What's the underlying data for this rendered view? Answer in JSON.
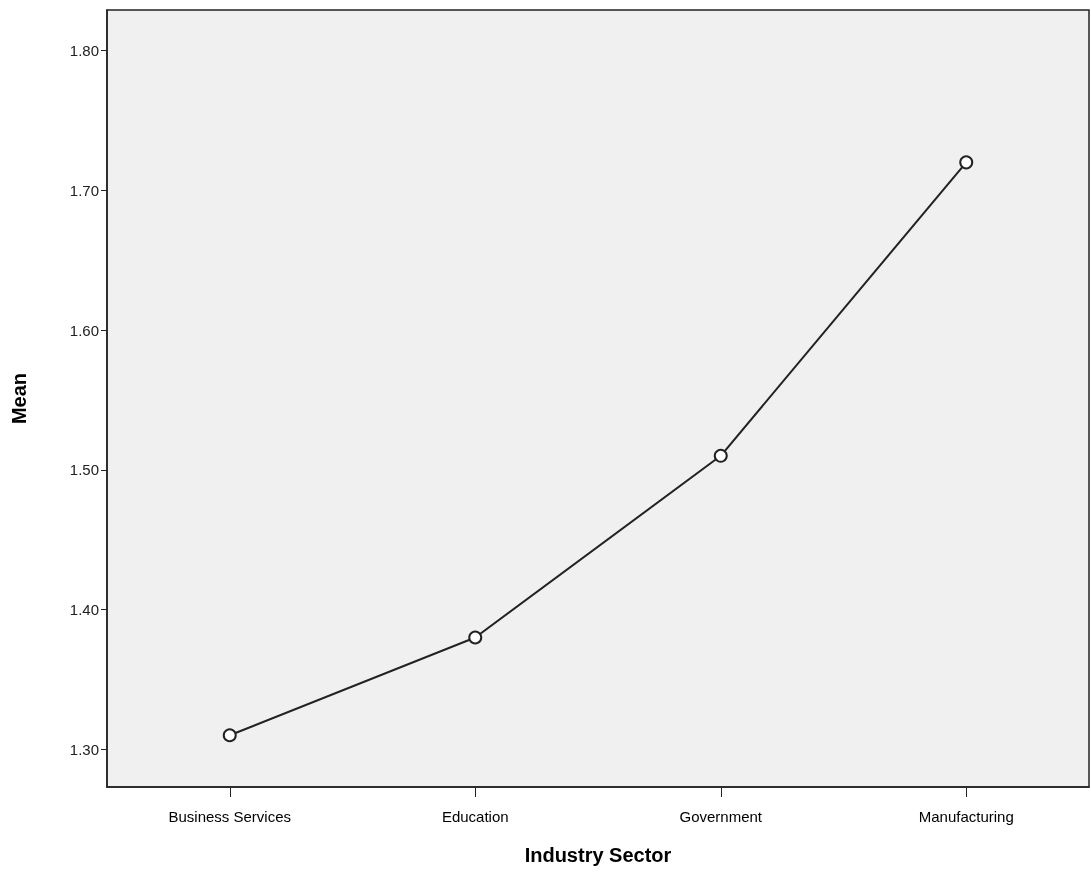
{
  "chart_data": {
    "type": "line",
    "xlabel": "Industry Sector",
    "ylabel": "Mean",
    "categories": [
      "Business Services",
      "Education",
      "Government",
      "Manufacturing"
    ],
    "series": [
      {
        "color": "#222222",
        "values": [
          1.31,
          1.38,
          1.51,
          1.72
        ]
      }
    ],
    "ylim": [
      1.273,
      1.829
    ],
    "yticks": [
      {
        "value": 1.3,
        "label": "1.30"
      },
      {
        "value": 1.4,
        "label": "1.40"
      },
      {
        "value": 1.5,
        "label": "1.50"
      },
      {
        "value": 1.6,
        "label": "1.60"
      },
      {
        "value": 1.7,
        "label": "1.70"
      },
      {
        "value": 1.8,
        "label": "1.80"
      }
    ],
    "grid": false,
    "marker": "circle",
    "line_style": "solid"
  }
}
